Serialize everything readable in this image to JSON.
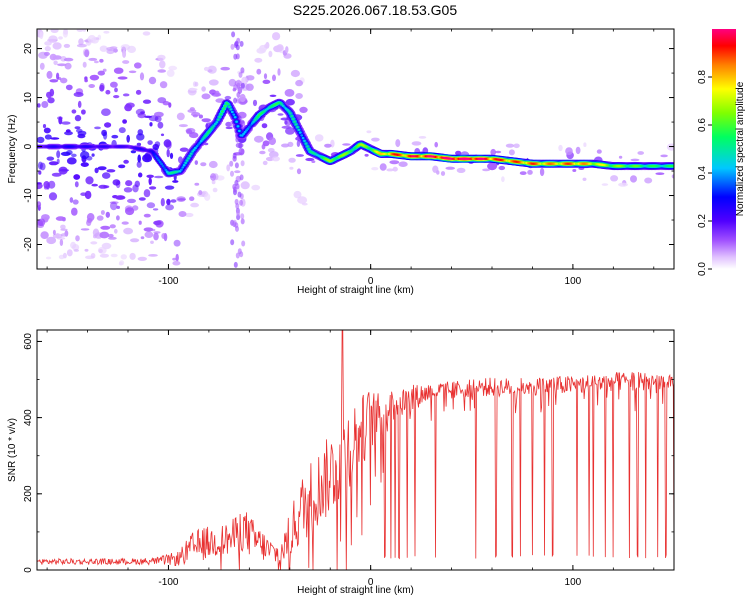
{
  "figure": {
    "title": "S225.2026.067.18.53.G05"
  },
  "chart_data": [
    {
      "type": "heatmap",
      "title": "S225.2026.067.18.53.G05",
      "xlabel": "Height of straight line (km)",
      "ylabel": "Frequency (Hz)",
      "xlim": [
        -165,
        150
      ],
      "ylim": [
        -25,
        24
      ],
      "xticks": [
        -100,
        0,
        100
      ],
      "xtick_labels": [
        "-100",
        "0",
        "100"
      ],
      "yticks": [
        -20,
        -10,
        0,
        10,
        20
      ],
      "ytick_labels": [
        "-20",
        "-10",
        "0",
        "10",
        "20"
      ],
      "colorbar": {
        "label": "Normalized spectral amplitude",
        "range": [
          0,
          1
        ],
        "ticks": [
          0.0,
          0.2,
          0.4,
          0.6,
          0.8
        ],
        "tick_labels": [
          "0.0",
          "0.2",
          "0.4",
          "0.6",
          "0.8"
        ],
        "colors": [
          "#ffffff",
          "#d8b4f8",
          "#8000ff",
          "#0000ff",
          "#00c8ff",
          "#00ff80",
          "#40ff00",
          "#ffff00",
          "#ff8000",
          "#ff0000",
          "#ff0080"
        ]
      },
      "ridge": {
        "x": [
          -165,
          -150,
          -135,
          -120,
          -108,
          -100,
          -94,
          -88,
          -82,
          -76,
          -71,
          -67,
          -64,
          -60,
          -55,
          -50,
          -45,
          -40,
          -35,
          -30,
          -25,
          -20,
          -15,
          -10,
          -5,
          0,
          5,
          10,
          20,
          30,
          40,
          50,
          60,
          70,
          80,
          90,
          100,
          110,
          120,
          130,
          140,
          150
        ],
        "y": [
          0,
          0,
          0,
          0,
          -1,
          -5.5,
          -5,
          -1,
          2,
          5,
          9,
          6,
          2,
          4,
          6.5,
          8,
          9,
          7,
          3,
          -1,
          -2,
          -3,
          -2,
          -1,
          0.5,
          -0.5,
          -1.5,
          -1.5,
          -2,
          -2,
          -2.5,
          -2.5,
          -2.5,
          -3,
          -3.5,
          -3.5,
          -3.5,
          -3.5,
          -4,
          -4,
          -4,
          -4
        ],
        "amplitude": [
          0.2,
          0.25,
          0.22,
          0.2,
          0.25,
          0.45,
          0.45,
          0.4,
          0.45,
          0.5,
          0.5,
          0.45,
          0.35,
          0.4,
          0.5,
          0.5,
          0.5,
          0.45,
          0.45,
          0.45,
          0.5,
          0.6,
          0.6,
          0.55,
          0.6,
          0.6,
          0.7,
          0.8,
          0.85,
          0.9,
          0.95,
          0.95,
          0.85,
          0.8,
          0.8,
          0.75,
          0.8,
          0.7,
          0.6,
          0.55,
          0.5,
          0.5
        ]
      }
    },
    {
      "type": "line",
      "xlabel": "Height of straight line (km)",
      "ylabel": "SNR (10 * v/v)",
      "xlim": [
        -165,
        150
      ],
      "ylim": [
        0,
        630
      ],
      "xticks": [
        -100,
        0,
        100
      ],
      "xtick_labels": [
        "-100",
        "0",
        "100"
      ],
      "yticks": [
        0,
        200,
        400,
        600
      ],
      "ytick_labels": [
        "0",
        "200",
        "400",
        "600"
      ],
      "series": [
        {
          "name": "SNR",
          "color": "#e83030",
          "x": [
            -165,
            -150,
            -135,
            -120,
            -105,
            -95,
            -88,
            -82,
            -75,
            -68,
            -63,
            -60,
            -55,
            -50,
            -45,
            -40,
            -35,
            -30,
            -25,
            -20,
            -15,
            -10,
            -5,
            0,
            5,
            10,
            15,
            20,
            25,
            30,
            40,
            50,
            60,
            70,
            80,
            90,
            100,
            110,
            120,
            130,
            140,
            150
          ],
          "y": [
            22,
            22,
            22,
            22,
            24,
            30,
            60,
            70,
            75,
            85,
            110,
            90,
            70,
            50,
            40,
            90,
            150,
            190,
            220,
            250,
            300,
            330,
            360,
            400,
            400,
            420,
            440,
            450,
            460,
            470,
            470,
            480,
            480,
            480,
            480,
            485,
            485,
            490,
            495,
            495,
            495,
            495
          ],
          "noise": [
            8,
            8,
            8,
            8,
            10,
            20,
            40,
            45,
            40,
            50,
            60,
            55,
            45,
            35,
            30,
            60,
            90,
            100,
            100,
            110,
            120,
            110,
            100,
            80,
            60,
            50,
            40,
            35,
            30,
            25,
            25,
            25,
            25,
            25,
            25,
            25,
            25,
            25,
            25,
            25,
            25,
            25
          ],
          "spike_peaks": [
            {
              "x": -14,
              "y": 630
            }
          ],
          "dropouts_x": [
            7,
            10,
            12,
            14,
            18,
            22,
            32,
            52,
            62,
            70,
            74,
            80,
            86,
            90,
            102,
            108,
            110,
            116,
            120,
            128,
            132,
            136,
            142,
            146,
            150
          ],
          "dropout_level": 30
        }
      ]
    }
  ]
}
